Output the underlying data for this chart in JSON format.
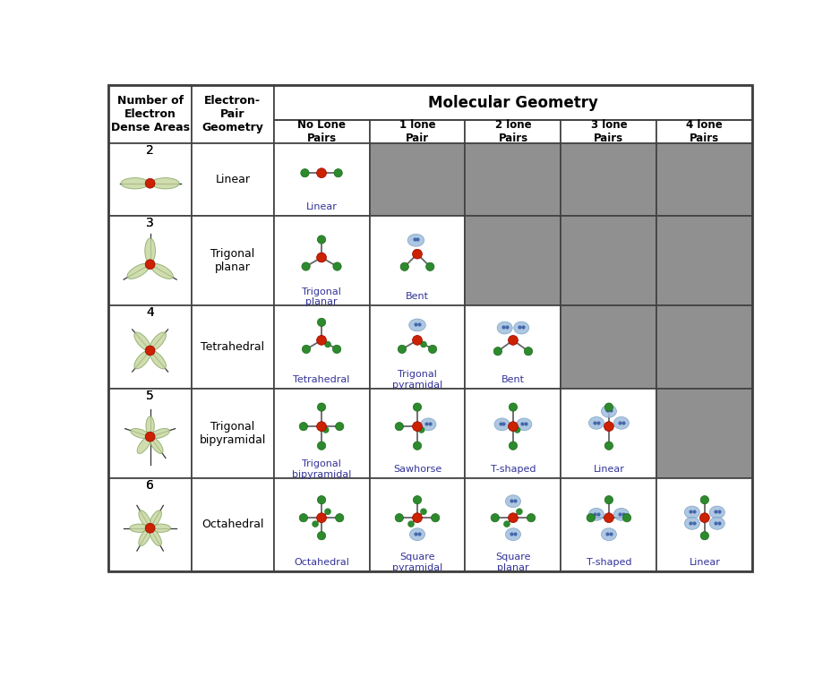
{
  "title": "Molecular Geometry",
  "col0_header": "Number of\nElectron\nDense Areas",
  "col1_header": "Electron-\nPair\nGeometry",
  "mol_geo_header": "Molecular Geometry",
  "lone_pair_headers": [
    "No Lone\nPairs",
    "1 lone\nPair",
    "2 lone\nPairs",
    "3 lone\nPairs",
    "4 lone\nPairs"
  ],
  "rows": [
    {
      "n": "2",
      "epg": "Linear",
      "cells": [
        {
          "label": "Linear",
          "active": true
        },
        {
          "label": "",
          "active": false
        },
        {
          "label": "",
          "active": false
        },
        {
          "label": "",
          "active": false
        },
        {
          "label": "",
          "active": false
        }
      ]
    },
    {
      "n": "3",
      "epg": "Trigonal\nplanar",
      "cells": [
        {
          "label": "Trigonal\nplanar",
          "active": true
        },
        {
          "label": "Bent",
          "active": true
        },
        {
          "label": "",
          "active": false
        },
        {
          "label": "",
          "active": false
        },
        {
          "label": "",
          "active": false
        }
      ]
    },
    {
      "n": "4",
      "epg": "Tetrahedral",
      "cells": [
        {
          "label": "Tetrahedral",
          "active": true
        },
        {
          "label": "Trigonal\npyramidal",
          "active": true
        },
        {
          "label": "Bent",
          "active": true
        },
        {
          "label": "",
          "active": false
        },
        {
          "label": "",
          "active": false
        }
      ]
    },
    {
      "n": "5",
      "epg": "Trigonal\nbipyramidal",
      "cells": [
        {
          "label": "Trigonal\nbipyramidal",
          "active": true
        },
        {
          "label": "Sawhorse",
          "active": true
        },
        {
          "label": "T-shaped",
          "active": true
        },
        {
          "label": "Linear",
          "active": true
        },
        {
          "label": "",
          "active": false
        }
      ]
    },
    {
      "n": "6",
      "epg": "Octahedral",
      "cells": [
        {
          "label": "Octahedral",
          "active": true
        },
        {
          "label": "Square\npyramidal",
          "active": true
        },
        {
          "label": "Square\nplanar",
          "active": true
        },
        {
          "label": "T-shaped",
          "active": true
        },
        {
          "label": "Linear",
          "active": true
        }
      ]
    }
  ],
  "colors": {
    "border": "#404040",
    "active_bg": "#ffffff",
    "inactive_bg": "#909090",
    "center_atom": "#cc2200",
    "outer_atom_green": "#2d8a2d",
    "lone_pair_blue": "#a0bedd",
    "bond_color": "#666666",
    "lobe_color": "#c8d8a0",
    "lobe_edge": "#8aaa6a",
    "text_color": "#000000",
    "grid_line": "#404040",
    "label_color": "#333399"
  }
}
